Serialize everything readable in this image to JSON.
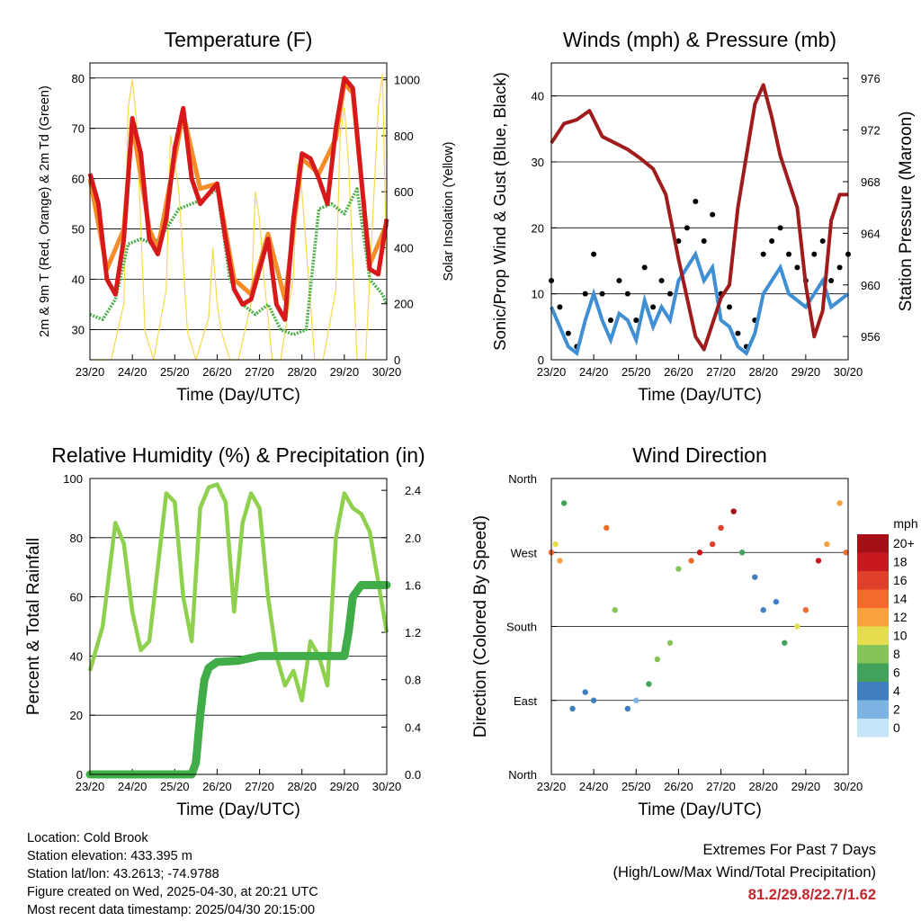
{
  "time_ticks": [
    "23/20",
    "24/20",
    "25/20",
    "26/20",
    "27/20",
    "28/20",
    "29/20",
    "30/20"
  ],
  "colors": {
    "temp2m": "#d7191c",
    "temp9m": "#f48c28",
    "dewpoint": "#4daf4a",
    "solar": "#f5d94a",
    "wind": "#000000",
    "gust_sonic": "#3f8fd2",
    "pressure": "#a01c1c",
    "rh": "#8fd14f",
    "precip": "#41ad48"
  },
  "chart_data": [
    {
      "id": "temp",
      "type": "line",
      "title": "Temperature (F)",
      "xlabel": "Time (Day/UTC)",
      "ylabel": "2m & 9m T (Red, Orange) & 2m Td (Green)",
      "y2label": "Solar Insolation (Yellow)",
      "ylim": [
        24,
        83
      ],
      "y2lim": [
        0,
        1060
      ],
      "yticks": [
        30,
        40,
        50,
        60,
        70,
        80
      ],
      "y2ticks": [
        0,
        200,
        400,
        600,
        800,
        1000
      ],
      "grid": true,
      "series": [
        {
          "key": "temp2m",
          "x": [
            0,
            0.2,
            0.4,
            0.6,
            0.8,
            1.0,
            1.2,
            1.4,
            1.6,
            1.8,
            2.0,
            2.2,
            2.4,
            2.6,
            2.8,
            3.0,
            3.2,
            3.4,
            3.6,
            3.8,
            4.0,
            4.2,
            4.4,
            4.6,
            4.8,
            5.0,
            5.2,
            5.4,
            5.6,
            5.8,
            6.0,
            6.2,
            6.4,
            6.6,
            6.8,
            7.0
          ],
          "values": [
            61,
            55,
            40,
            37,
            48,
            72,
            65,
            48,
            45,
            52,
            66,
            74,
            60,
            55,
            57,
            59,
            48,
            38,
            35,
            36,
            42,
            48,
            35,
            32,
            52,
            65,
            64,
            60,
            55,
            70,
            80,
            78,
            60,
            42,
            41,
            52
          ]
        },
        {
          "key": "temp9m",
          "x": [
            0,
            0.4,
            0.8,
            1.0,
            1.4,
            1.6,
            2.0,
            2.2,
            2.6,
            3.0,
            3.4,
            3.8,
            4.2,
            4.6,
            5.0,
            5.4,
            5.8,
            6.0,
            6.2,
            6.6,
            7.0
          ],
          "values": [
            60,
            42,
            50,
            71,
            50,
            46,
            64,
            73,
            58,
            59,
            40,
            37,
            49,
            36,
            64,
            61,
            68,
            79,
            77,
            43,
            51
          ]
        },
        {
          "key": "dewpoint",
          "x": [
            0,
            0.3,
            0.6,
            0.9,
            1.2,
            1.5,
            1.8,
            2.1,
            2.4,
            2.7,
            3.0,
            3.3,
            3.6,
            3.9,
            4.2,
            4.5,
            4.8,
            5.1,
            5.4,
            5.7,
            6.0,
            6.3,
            6.6,
            6.9,
            7.0
          ],
          "values": [
            33,
            32,
            36,
            47,
            48,
            47,
            50,
            54,
            55,
            56,
            58,
            40,
            35,
            33,
            35,
            30,
            29,
            30,
            54,
            55,
            53,
            58,
            40,
            37,
            35
          ]
        },
        {
          "key": "solar",
          "x": [
            0,
            0.5,
            0.8,
            0.9,
            1.0,
            1.1,
            1.3,
            1.5,
            1.8,
            1.9,
            2.0,
            2.1,
            2.3,
            2.5,
            2.8,
            2.9,
            3.0,
            3.1,
            3.3,
            3.5,
            3.8,
            3.9,
            4.0,
            4.1,
            4.3,
            4.5,
            4.8,
            4.9,
            5.0,
            5.1,
            5.3,
            5.5,
            5.8,
            5.9,
            6.0,
            6.1,
            6.3,
            6.5,
            6.8,
            6.9,
            7.0
          ],
          "values": [
            0,
            0,
            200,
            900,
            1000,
            850,
            100,
            0,
            250,
            800,
            700,
            600,
            100,
            0,
            150,
            400,
            200,
            100,
            0,
            0,
            200,
            600,
            500,
            300,
            0,
            0,
            300,
            700,
            600,
            400,
            0,
            0,
            250,
            800,
            900,
            700,
            0,
            0,
            900,
            1020,
            300
          ]
        }
      ]
    },
    {
      "id": "wind",
      "type": "scatter",
      "title": "Winds (mph) & Pressure (mb)",
      "xlabel": "Time (Day/UTC)",
      "ylabel": "Sonic/Prop Wind & Gust (Blue, Black)",
      "y2label": "Station Pressure (Maroon)",
      "ylim": [
        0,
        45
      ],
      "y2lim": [
        954.2,
        977.2
      ],
      "yticks": [
        0,
        10,
        20,
        30,
        40
      ],
      "y2ticks": [
        956,
        960,
        964,
        968,
        972,
        976
      ],
      "grid": true,
      "series": [
        {
          "key": "wind",
          "x": [
            0,
            0.2,
            0.4,
            0.6,
            0.8,
            1.0,
            1.2,
            1.4,
            1.6,
            1.8,
            2.0,
            2.2,
            2.4,
            2.6,
            2.8,
            3.0,
            3.2,
            3.4,
            3.6,
            3.8,
            4.0,
            4.2,
            4.4,
            4.6,
            4.8,
            5.0,
            5.2,
            5.4,
            5.6,
            5.8,
            6.0,
            6.2,
            6.4,
            6.6,
            6.8,
            7.0
          ],
          "values": [
            12,
            8,
            4,
            2,
            10,
            16,
            10,
            6,
            12,
            10,
            6,
            14,
            8,
            12,
            10,
            18,
            20,
            24,
            18,
            22,
            10,
            8,
            4,
            2,
            6,
            16,
            18,
            20,
            16,
            14,
            12,
            16,
            18,
            12,
            14,
            16
          ]
        },
        {
          "key": "gust_sonic",
          "x": [
            0,
            0.2,
            0.4,
            0.6,
            0.8,
            1.0,
            1.2,
            1.4,
            1.6,
            1.8,
            2.0,
            2.2,
            2.4,
            2.6,
            2.8,
            3.0,
            3.2,
            3.4,
            3.6,
            3.8,
            4.0,
            4.2,
            4.4,
            4.6,
            4.8,
            5.0,
            5.2,
            5.4,
            5.6,
            5.8,
            6.0,
            6.2,
            6.4,
            6.6,
            6.8,
            7.0
          ],
          "values": [
            8,
            5,
            2,
            1,
            6,
            10,
            6,
            3,
            7,
            6,
            3,
            9,
            5,
            8,
            6,
            12,
            14,
            16,
            12,
            14,
            6,
            5,
            2,
            1,
            4,
            10,
            12,
            14,
            10,
            9,
            8,
            10,
            12,
            8,
            9,
            10
          ]
        },
        {
          "key": "pressure",
          "x": [
            0,
            0.3,
            0.6,
            0.9,
            1.2,
            1.5,
            1.8,
            2.1,
            2.4,
            2.7,
            3.0,
            3.2,
            3.4,
            3.6,
            3.8,
            4.0,
            4.2,
            4.4,
            4.6,
            4.8,
            5.0,
            5.2,
            5.4,
            5.6,
            5.8,
            6.0,
            6.2,
            6.4,
            6.6,
            6.8,
            7.0
          ],
          "values": [
            971,
            972.5,
            972.8,
            973.5,
            971.5,
            971,
            970.5,
            969.8,
            969,
            967,
            962,
            959,
            956,
            955,
            957,
            959,
            960,
            966,
            970,
            974,
            975.5,
            973,
            970,
            968,
            966,
            960,
            956,
            958,
            965,
            967,
            967
          ]
        }
      ]
    },
    {
      "id": "rh",
      "type": "line",
      "title": "Relative Humidity (%) & Precipitation (in)",
      "xlabel": "Time (Day/UTC)",
      "ylabel": "Percent & Total Rainfall",
      "ylim": [
        0,
        100
      ],
      "y2lim": [
        0,
        2.5
      ],
      "yticks": [
        0,
        20,
        40,
        60,
        80,
        100
      ],
      "y2ticks": [
        "0.0",
        "0.4",
        "0.8",
        "1.2",
        "1.6",
        "2.0",
        "2.4"
      ],
      "grid": true,
      "series": [
        {
          "key": "rh",
          "x": [
            0,
            0.3,
            0.6,
            0.8,
            1.0,
            1.2,
            1.4,
            1.6,
            1.8,
            2.0,
            2.2,
            2.4,
            2.6,
            2.8,
            3.0,
            3.2,
            3.4,
            3.6,
            3.8,
            4.0,
            4.2,
            4.4,
            4.6,
            4.8,
            5.0,
            5.2,
            5.4,
            5.6,
            5.8,
            6.0,
            6.2,
            6.4,
            6.6,
            6.8,
            7.0
          ],
          "values": [
            35,
            50,
            85,
            78,
            55,
            42,
            45,
            70,
            95,
            92,
            60,
            45,
            90,
            97,
            98,
            92,
            55,
            85,
            95,
            90,
            60,
            40,
            30,
            35,
            25,
            45,
            40,
            30,
            80,
            95,
            90,
            88,
            82,
            65,
            48
          ]
        },
        {
          "key": "precip",
          "x": [
            0,
            0.5,
            1.0,
            1.5,
            2.0,
            2.4,
            2.5,
            2.6,
            2.7,
            2.8,
            3.0,
            3.5,
            4.0,
            4.5,
            5.0,
            5.5,
            6.0,
            6.1,
            6.2,
            6.4,
            6.6,
            7.0
          ],
          "values": [
            0,
            0,
            0,
            0,
            0,
            0,
            0.1,
            0.5,
            0.8,
            0.9,
            0.95,
            0.96,
            1.0,
            1.0,
            1.0,
            1.0,
            1.0,
            1.2,
            1.5,
            1.6,
            1.6,
            1.6
          ]
        }
      ]
    },
    {
      "id": "dir",
      "type": "scatter",
      "title": "Wind Direction",
      "xlabel": "Time (Day/UTC)",
      "ylabel": "Direction (Colored By Speed)",
      "ylim": [
        0,
        360
      ],
      "yticks": [
        "North",
        "East",
        "South",
        "West",
        "North"
      ],
      "grid": true,
      "legend": {
        "title": "mph",
        "labels": [
          "20+",
          "18",
          "16",
          "14",
          "12",
          "10",
          "8",
          "6",
          "4",
          "2",
          "0"
        ],
        "colors": [
          "#a50f15",
          "#c8191f",
          "#e0402a",
          "#f26a2c",
          "#f9a03f",
          "#e4de4e",
          "#86c45a",
          "#41a35b",
          "#3f7fc0",
          "#7cb4e3",
          "#c6e4f7"
        ]
      },
      "series": [
        {
          "key": "direction",
          "x": [
            0,
            0.1,
            0.2,
            0.3,
            0.5,
            0.8,
            1.0,
            1.3,
            1.5,
            1.8,
            2.0,
            2.3,
            2.5,
            2.8,
            3.0,
            3.3,
            3.5,
            3.8,
            4.0,
            4.3,
            4.5,
            4.8,
            5.0,
            5.3,
            5.5,
            5.8,
            6.0,
            6.3,
            6.5,
            6.8,
            6.95
          ],
          "values": [
            270,
            280,
            260,
            330,
            80,
            100,
            90,
            300,
            200,
            80,
            90,
            110,
            140,
            160,
            250,
            260,
            270,
            280,
            300,
            320,
            270,
            240,
            200,
            210,
            160,
            180,
            200,
            260,
            280,
            330,
            270
          ],
          "speeds": [
            14,
            10,
            12,
            6,
            4,
            3,
            4,
            14,
            8,
            3,
            2,
            6,
            8,
            8,
            8,
            14,
            18,
            16,
            16,
            20,
            6,
            4,
            3,
            4,
            6,
            10,
            14,
            18,
            12,
            12,
            14
          ]
        }
      ]
    }
  ],
  "info": {
    "location": "Location: Cold Brook",
    "elevation": "Station elevation: 433.395 m",
    "latlon": "Station lat/lon: 43.2613; -74.9788",
    "created": "Figure created on Wed, 2025-04-30, at 20:21 UTC",
    "latest": "Most recent data timestamp: 2025/04/30 20:15:00"
  },
  "extremes": {
    "title": "Extremes For Past 7 Days",
    "subtitle": "(High/Low/Max Wind/Total Precipitation)",
    "values": "81.2/29.8/22.7/1.62"
  }
}
